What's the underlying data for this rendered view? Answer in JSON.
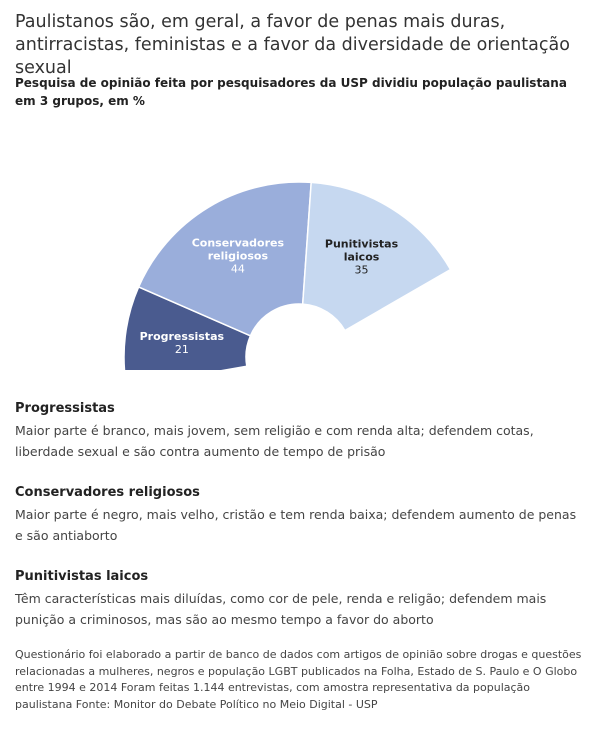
{
  "header": {
    "title": "Paulistanos são, em geral, a favor de penas mais duras, antirracistas, feministas e a favor da diversidade de orientação sexual",
    "subtitle": "Pesquisa de opinião feita por pesquisadores da USP dividiu população paulistana em 3 grupos, em %"
  },
  "chart_data": {
    "type": "pie",
    "variant": "semi-donut",
    "unit": "%",
    "categories": [
      "Progressistas",
      "Conservadores religiosos",
      "Punitivistas laicos"
    ],
    "label_lines": [
      [
        "Progressistas"
      ],
      [
        "Conservadores",
        "religiosos"
      ],
      [
        "Punitivistas",
        "laicos"
      ]
    ],
    "values": [
      21,
      44,
      35
    ],
    "colors": [
      "#4a5b8f",
      "#9aaedb",
      "#c6d8f0"
    ],
    "label_colors": [
      "#ffffff",
      "#ffffff",
      "#222222"
    ]
  },
  "groups": [
    {
      "name": "Progressistas",
      "description": "Maior parte é branco, mais jovem, sem religião e com renda alta; defendem cotas, liberdade sexual e são contra aumento de tempo de prisão"
    },
    {
      "name": "Conservadores religiosos",
      "description": "Maior parte é negro, mais velho, cristão e tem renda baixa; defendem aumento de penas e são antiaborto"
    },
    {
      "name": "Punitivistas laicos",
      "description": "Têm características mais diluídas, como cor de pele, renda e religão; defendem mais punição a criminosos, mas são ao mesmo tempo a favor do aborto"
    }
  ],
  "footer": {
    "source": "Questionário foi elaborado a partir de banco de dados com artigos de opinião sobre drogas e questões relacionadas a mulheres, negros e população LGBT publicados na Folha, Estado de S. Paulo e O Globo entre 1994 e 2014 Foram feitas 1.144 entrevistas, com amostra representativa da população paulistana Fonte: Monitor do Debate Político no Meio Digital - USP"
  }
}
